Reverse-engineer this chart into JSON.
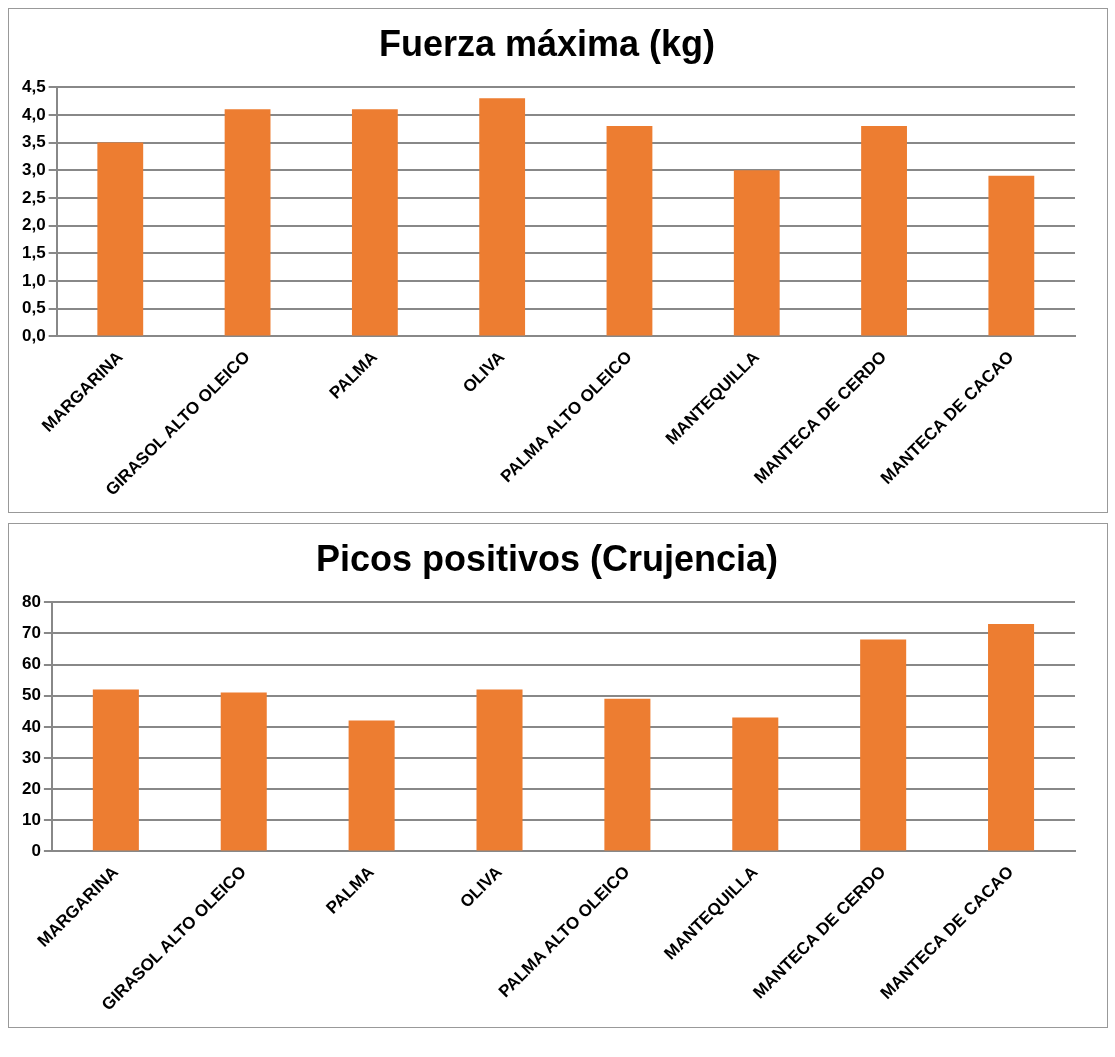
{
  "chart_data": [
    {
      "type": "bar",
      "title": "Fuerza máxima (kg)",
      "categories": [
        "MARGARINA",
        "GIRASOL ALTO OLEICO",
        "PALMA",
        "OLIVA",
        "PALMA ALTO OLEICO",
        "MANTEQUILLA",
        "MANTECA DE CERDO",
        "MANTECA DE CACAO"
      ],
      "values": [
        3.5,
        4.1,
        4.1,
        4.3,
        3.8,
        3.0,
        3.8,
        2.9
      ],
      "color": "#ed7d31",
      "ylim": [
        0,
        4.5
      ],
      "yticks": [
        {
          "value": 0,
          "label": "0,0"
        },
        {
          "value": 0.5,
          "label": "0,5"
        },
        {
          "value": 1,
          "label": "1,0"
        },
        {
          "value": 1.5,
          "label": "1,5"
        },
        {
          "value": 2,
          "label": "2,0"
        },
        {
          "value": 2.5,
          "label": "2,5"
        },
        {
          "value": 3,
          "label": "3,0"
        },
        {
          "value": 3.5,
          "label": "3,5"
        },
        {
          "value": 4,
          "label": "4,0"
        },
        {
          "value": 4.5,
          "label": "4,5"
        }
      ],
      "grid": "y"
    },
    {
      "type": "bar",
      "title": "Picos positivos (Crujencia)",
      "categories": [
        "MARGARINA",
        "GIRASOL ALTO OLEICO",
        "PALMA",
        "OLIVA",
        "PALMA ALTO OLEICO",
        "MANTEQUILLA",
        "MANTECA DE CERDO",
        "MANTECA DE CACAO"
      ],
      "values": [
        52,
        51,
        42,
        52,
        49,
        43,
        68,
        73
      ],
      "color": "#ed7d31",
      "ylim": [
        0,
        80
      ],
      "yticks": [
        0,
        10,
        20,
        30,
        40,
        50,
        60,
        70,
        80
      ],
      "grid": "y"
    }
  ]
}
